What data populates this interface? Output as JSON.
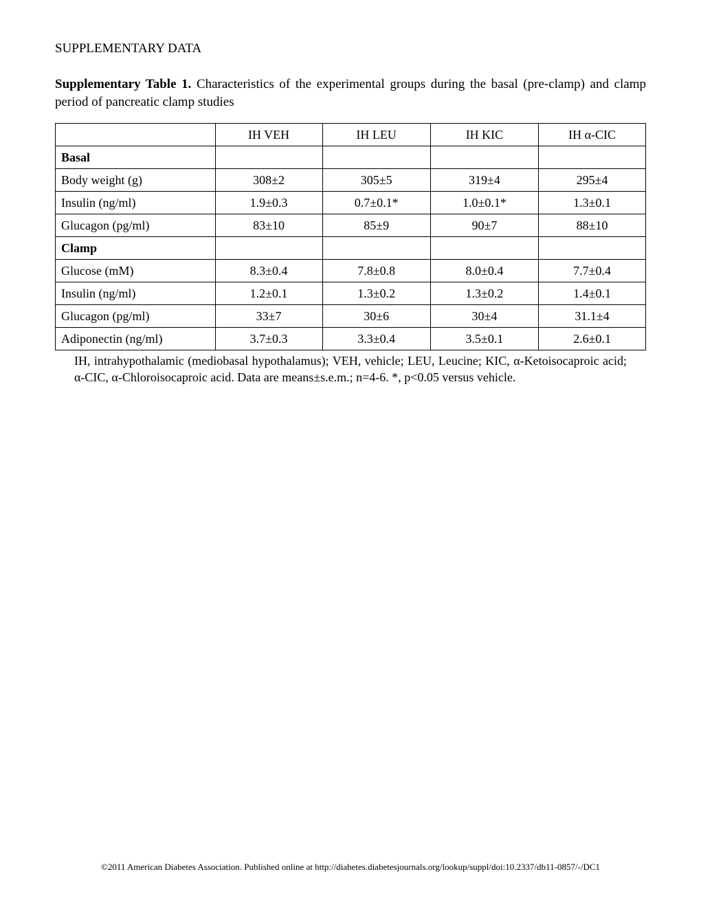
{
  "header": "SUPPLEMENTARY DATA",
  "caption_bold": "Supplementary Table 1.",
  "caption_rest": " Characteristics of the experimental groups during the basal (pre-clamp) and clamp period of pancreatic clamp studies",
  "table": {
    "columns": [
      "IH VEH",
      "IH LEU",
      "IH KIC",
      "IH α-CIC"
    ],
    "sections": [
      {
        "title": "Basal",
        "rows": [
          {
            "label": "Body weight (g)",
            "values": [
              "308±2",
              "305±5",
              "319±4",
              "295±4"
            ]
          },
          {
            "label": "Insulin (ng/ml)",
            "values": [
              "1.9±0.3",
              "0.7±0.1*",
              "1.0±0.1*",
              "1.3±0.1"
            ]
          },
          {
            "label": "Glucagon (pg/ml)",
            "values": [
              "83±10",
              "85±9",
              "90±7",
              "88±10"
            ]
          }
        ]
      },
      {
        "title": "Clamp",
        "rows": [
          {
            "label": "Glucose (mM)",
            "values": [
              "8.3±0.4",
              "7.8±0.8",
              "8.0±0.4",
              "7.7±0.4"
            ]
          },
          {
            "label": "Insulin (ng/ml)",
            "values": [
              "1.2±0.1",
              "1.3±0.2",
              "1.3±0.2",
              "1.4±0.1"
            ]
          },
          {
            "label": "Glucagon (pg/ml)",
            "values": [
              "33±7",
              "30±6",
              "30±4",
              "31.1±4"
            ]
          },
          {
            "label": "Adiponectin (ng/ml)",
            "values": [
              "3.7±0.3",
              "3.3±0.4",
              "3.5±0.1",
              "2.6±0.1"
            ]
          }
        ]
      }
    ]
  },
  "footnote": "IH, intrahypothalamic (mediobasal hypothalamus); VEH, vehicle; LEU, Leucine; KIC, α-Ketoisocaproic acid; α-CIC, α-Chloroisocaproic acid. Data are means±s.e.m.; n=4-6. *, p<0.05 versus vehicle.",
  "footer": "©2011 American Diabetes Association. Published online at http://diabetes.diabetesjournals.org/lookup/suppl/doi:10.2337/db11-0857/-/DC1"
}
